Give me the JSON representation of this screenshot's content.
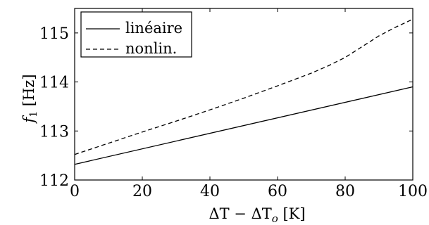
{
  "chart_data": {
    "type": "line",
    "xlabel": "ΔT − ΔTo [K]",
    "ylabel": "f1 [Hz]",
    "xlim": [
      0,
      100
    ],
    "ylim": [
      112,
      115.5
    ],
    "x_ticks": [
      "0",
      "20",
      "40",
      "60",
      "80",
      "100"
    ],
    "y_ticks": [
      "112",
      "113",
      "114",
      "115"
    ],
    "grid": false,
    "legend_position": "top-left",
    "series": [
      {
        "name": "linéaire",
        "style": "solid",
        "color": "#000000",
        "x": [
          0,
          100
        ],
        "y": [
          112.32,
          113.9
        ]
      },
      {
        "name": "nonlin.",
        "style": "dashed",
        "color": "#000000",
        "x": [
          0,
          10,
          20,
          30,
          40,
          50,
          60,
          70,
          75,
          80,
          85,
          90,
          95,
          100
        ],
        "y": [
          112.52,
          112.75,
          112.98,
          113.2,
          113.43,
          113.67,
          113.92,
          114.18,
          114.33,
          114.5,
          114.72,
          114.94,
          115.12,
          115.28
        ]
      }
    ]
  }
}
